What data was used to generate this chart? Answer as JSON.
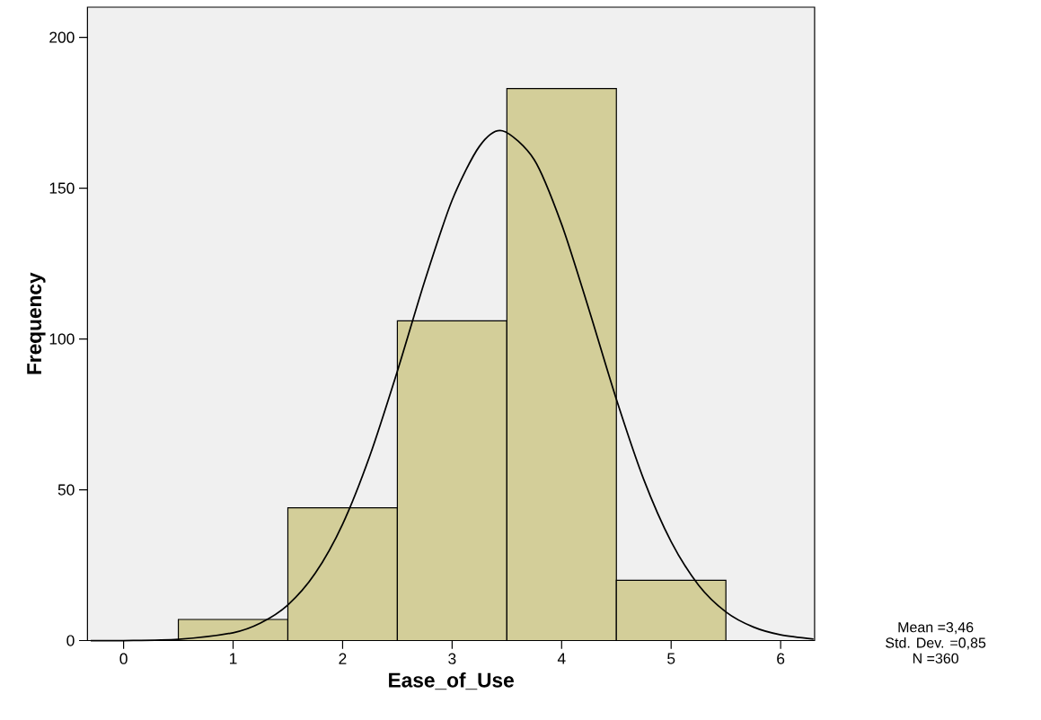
{
  "chart_data": {
    "type": "histogram",
    "xlabel": "Ease_of_Use",
    "ylabel": "Frequency",
    "bins": [
      0.5,
      1.5,
      2.5,
      3.5,
      4.5,
      5.5
    ],
    "values": [
      7,
      44,
      106,
      183,
      20
    ],
    "color": "#d3ce99",
    "series": [
      {
        "type": "line",
        "color": "#000000",
        "x": [
          -0.3,
          0,
          0.5,
          1,
          1.25,
          1.5,
          1.75,
          2,
          2.25,
          2.5,
          2.75,
          3,
          3.25,
          3.46,
          3.75,
          4,
          4.25,
          4.5,
          4.75,
          5,
          5.25,
          5.5,
          5.75,
          6,
          6.3
        ],
        "values": [
          0,
          0,
          0.4,
          2.6,
          5.8,
          11.8,
          22.3,
          38.6,
          61.4,
          89.3,
          119.2,
          146,
          163.9,
          169,
          159.4,
          138,
          109.7,
          80,
          53.4,
          32.8,
          18.4,
          9.5,
          4.5,
          1.9,
          0.5
        ]
      }
    ],
    "xlim": [
      -0.33,
      6.31
    ],
    "ylim": [
      0,
      210
    ],
    "xticks": [
      0,
      1,
      2,
      3,
      4,
      5,
      6
    ],
    "yticks": [
      0,
      50,
      100,
      150,
      200
    ],
    "grid": false,
    "annotations": [
      "Mean =3,46",
      "Std. Dev. =0,85",
      "N =360"
    ]
  }
}
